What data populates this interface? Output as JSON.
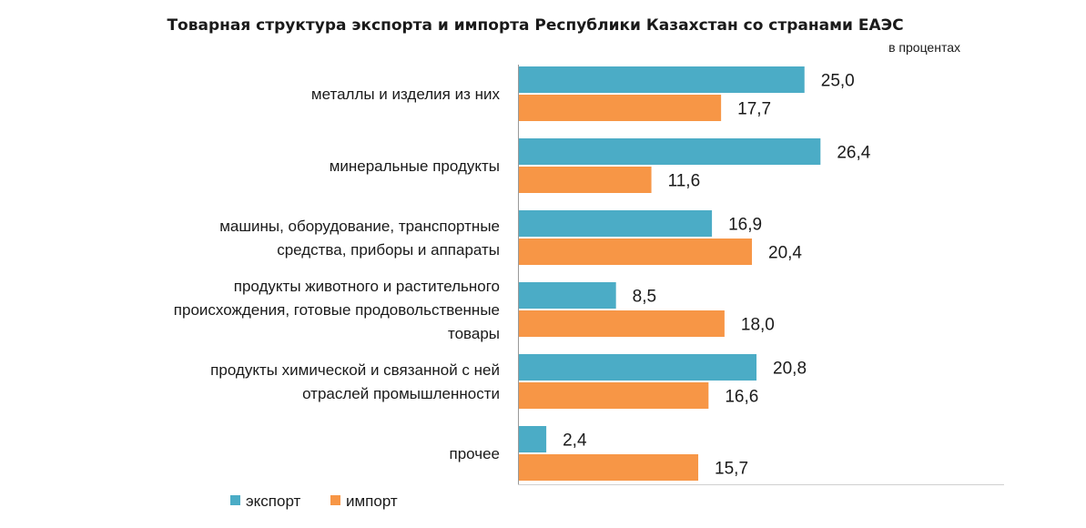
{
  "chart_data": {
    "type": "bar",
    "orientation": "horizontal",
    "title": "Товарная структура экспорта и импорта Республики Казахстан со странами ЕАЭС",
    "subtitle": "в процентах",
    "categories": [
      [
        "металлы и изделия из них"
      ],
      [
        "минеральные продукты"
      ],
      [
        "машины, оборудование, транспортные",
        "средства, приборы и аппараты"
      ],
      [
        "продукты животного и растительного",
        "происхождения, готовые продовольственные",
        "товары"
      ],
      [
        "продукты химической и связанной с ней",
        "отраслей промышленности"
      ],
      [
        "прочее"
      ]
    ],
    "series": [
      {
        "name": "экспорт",
        "color": "#4bacc6",
        "values": [
          25.0,
          26.4,
          16.9,
          8.5,
          20.8,
          2.4
        ],
        "labels": [
          "25,0",
          "26,4",
          "16,9",
          "8,5",
          "20,8",
          "2,4"
        ]
      },
      {
        "name": "импорт",
        "color": "#f79646",
        "values": [
          17.7,
          11.6,
          20.4,
          18.0,
          16.6,
          15.7
        ],
        "labels": [
          "17,7",
          "11,6",
          "20,4",
          "18,0",
          "16,6",
          "15,7"
        ]
      }
    ],
    "xlim": [
      0,
      40
    ],
    "grid": false,
    "legend_position": "bottom-left"
  }
}
